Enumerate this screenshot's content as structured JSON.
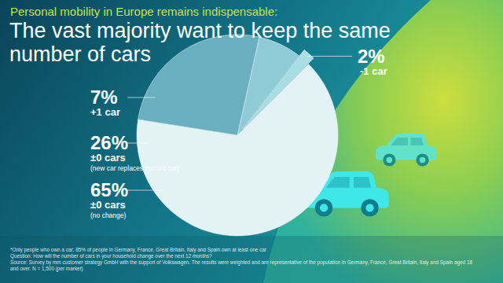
{
  "chart_data": {
    "type": "pie",
    "subtitle": "Personal mobility in Europe remains indispensable:",
    "title": "The vast majority want to keep the same number of cars",
    "categories": [
      "+1 car",
      "-1 car",
      "±0 cars",
      "±0 cars"
    ],
    "category_notes": [
      null,
      null,
      "(no change)",
      "(new car replaces current car)"
    ],
    "values": [
      7,
      2,
      65,
      26
    ],
    "value_labels": [
      "7%",
      "2%",
      "65%",
      "26%"
    ],
    "colors": [
      "#8fcbd6",
      "#a9dde4",
      "#e2f2f5",
      "#6aafbf"
    ],
    "data_labels": true,
    "footnotes": [
      "*Only people who own a car; 85% of people in Germany, France, Great Britain, Italy and Spain own at least one car",
      "Question: How will the number of cars in your household change over the next 12 months?",
      "Source: Survey by mm customer strategy GmbH with the support of Volkswagen. The results were weighted and are representative of the population in Germany, France, Great Britain, Italy and Spain aged 18 and over. N = 1,500 (per market)"
    ]
  }
}
